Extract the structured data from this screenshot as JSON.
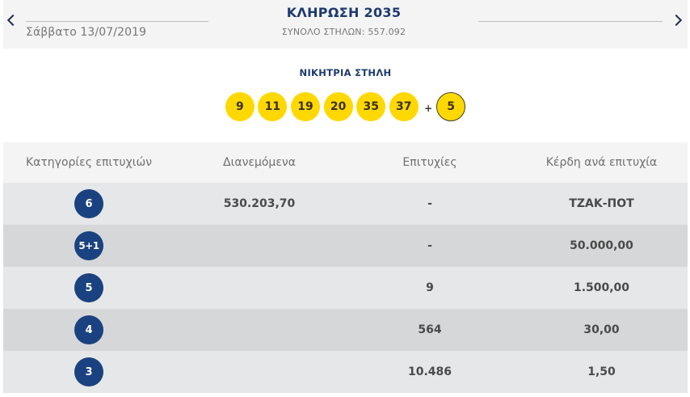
{
  "header": {
    "prev_icon": "chevron-left-icon",
    "next_icon": "chevron-right-icon",
    "date": "Σάββατο 13/07/2019",
    "draw_title": "ΚΛΗΡΩΣΗ 2035",
    "total_columns": "ΣΥΝΟΛΟ ΣΤΗΛΩΝ: 557.092"
  },
  "winning": {
    "title": "ΝΙΚΗΤΡΙΑ ΣΤΗΛΗ",
    "numbers": [
      "9",
      "11",
      "19",
      "20",
      "35",
      "37"
    ],
    "plus": "+",
    "bonus": "5",
    "ball_color": "#ffd800"
  },
  "table": {
    "headers": [
      "Κατηγορίες επιτυχιών",
      "Διανεμόμενα",
      "Επιτυχίες",
      "Κέρδη ανά επιτυχία"
    ],
    "rows": [
      {
        "category": "6",
        "distributed": "530.203,70",
        "winners": "-",
        "prize": "ΤΖΑΚ-ΠΟΤ"
      },
      {
        "category": "5+1",
        "distributed": "",
        "winners": "-",
        "prize": "50.000,00"
      },
      {
        "category": "5",
        "distributed": "",
        "winners": "9",
        "prize": "1.500,00"
      },
      {
        "category": "4",
        "distributed": "",
        "winners": "564",
        "prize": "30,00"
      },
      {
        "category": "3",
        "distributed": "",
        "winners": "10.486",
        "prize": "1,50"
      }
    ],
    "category_badge_color": "#1b4280"
  }
}
